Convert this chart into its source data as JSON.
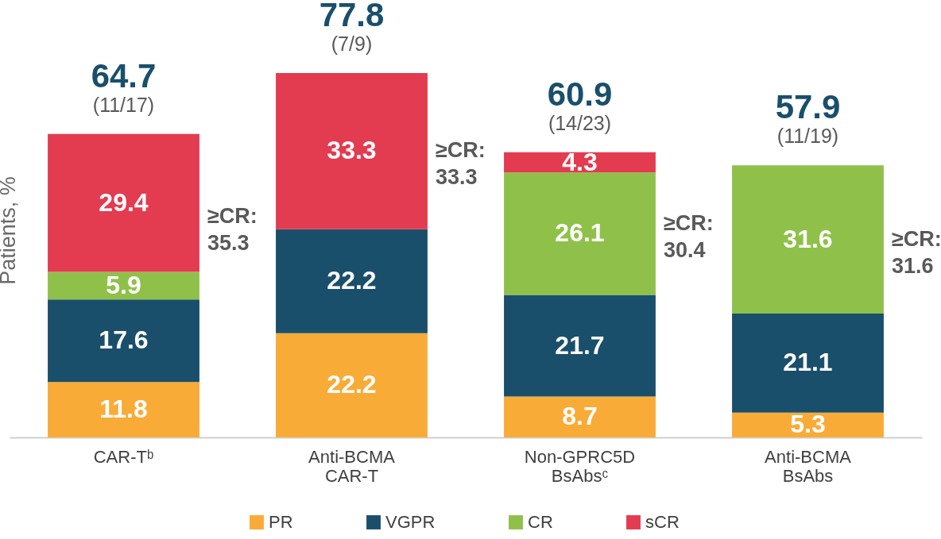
{
  "chart_data": {
    "type": "bar",
    "stacked": true,
    "data_labels": true,
    "legend": "bottom",
    "ylabel": "Patients, %",
    "categories": [
      "CAR-Tᵇ",
      "Anti-BCMA CAR-T",
      "Non-GPRC5D BsAbsᶜ",
      "Anti-BCMA BsAbs"
    ],
    "series": [
      {
        "name": "PR",
        "color": "#f9ab38",
        "values": [
          11.8,
          22.2,
          8.7,
          5.3
        ]
      },
      {
        "name": "VGPR",
        "color": "#1a4f6b",
        "values": [
          17.6,
          22.2,
          21.7,
          21.1
        ]
      },
      {
        "name": "CR",
        "color": "#8fc14a",
        "values": [
          5.9,
          null,
          26.1,
          31.6
        ]
      },
      {
        "name": "sCR",
        "color": "#e33b50",
        "values": [
          29.4,
          33.3,
          4.3,
          null
        ]
      }
    ],
    "totals": [
      "64.7",
      "77.8",
      "60.9",
      "57.9"
    ],
    "annotations": [
      "(11/17)",
      "(7/9)",
      "(14/23)",
      "(11/19)",
      "≥CR: 35.3",
      "≥CR: 33.3",
      "≥CR: 30.4",
      "≥CR: 31.6"
    ]
  }
}
